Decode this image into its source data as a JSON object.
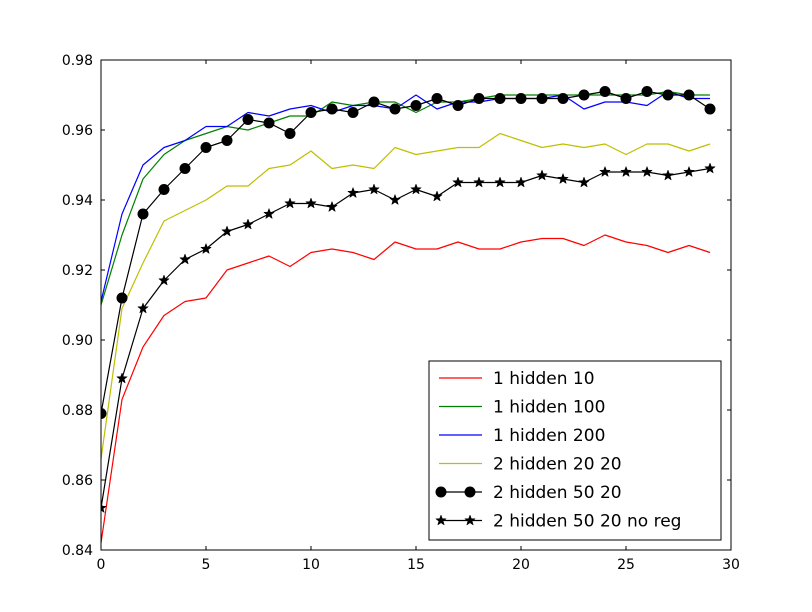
{
  "chart_data": {
    "type": "line",
    "title": "",
    "xlabel": "",
    "ylabel": "",
    "xlim": [
      0,
      30
    ],
    "ylim": [
      0.84,
      0.98
    ],
    "x_ticks": [
      "0",
      "5",
      "10",
      "15",
      "20",
      "25",
      "30"
    ],
    "y_ticks": [
      "0.84",
      "0.86",
      "0.88",
      "0.90",
      "0.92",
      "0.94",
      "0.96",
      "0.98"
    ],
    "grid": false,
    "legend_position": "lower-right",
    "x": [
      0,
      1,
      2,
      3,
      4,
      5,
      6,
      7,
      8,
      9,
      10,
      11,
      12,
      13,
      14,
      15,
      16,
      17,
      18,
      19,
      20,
      21,
      22,
      23,
      24,
      25,
      26,
      27,
      28,
      29
    ],
    "series": [
      {
        "name": "1 hidden 10",
        "color": "#ff0000",
        "marker": "none",
        "values": [
          0.842,
          0.883,
          0.898,
          0.907,
          0.911,
          0.912,
          0.92,
          0.922,
          0.924,
          0.921,
          0.925,
          0.926,
          0.925,
          0.923,
          0.928,
          0.926,
          0.926,
          0.928,
          0.926,
          0.926,
          0.928,
          0.929,
          0.929,
          0.927,
          0.93,
          0.928,
          0.927,
          0.925,
          0.927,
          0.925
        ]
      },
      {
        "name": "1 hidden 100",
        "color": "#008000",
        "marker": "none",
        "values": [
          0.91,
          0.93,
          0.946,
          0.953,
          0.957,
          0.959,
          0.961,
          0.96,
          0.962,
          0.964,
          0.964,
          0.968,
          0.967,
          0.968,
          0.968,
          0.965,
          0.968,
          0.968,
          0.969,
          0.97,
          0.97,
          0.97,
          0.97,
          0.97,
          0.97,
          0.97,
          0.97,
          0.971,
          0.97,
          0.97
        ]
      },
      {
        "name": "1 hidden 200",
        "color": "#0000ff",
        "marker": "none",
        "values": [
          0.911,
          0.936,
          0.95,
          0.955,
          0.957,
          0.961,
          0.961,
          0.965,
          0.964,
          0.966,
          0.967,
          0.965,
          0.967,
          0.967,
          0.966,
          0.97,
          0.966,
          0.968,
          0.968,
          0.969,
          0.969,
          0.969,
          0.97,
          0.966,
          0.968,
          0.968,
          0.967,
          0.971,
          0.969,
          0.969
        ]
      },
      {
        "name": "2 hidden 20 20",
        "color": "#bfbf00",
        "marker": "none",
        "values": [
          0.866,
          0.909,
          0.922,
          0.934,
          0.937,
          0.94,
          0.944,
          0.944,
          0.949,
          0.95,
          0.954,
          0.949,
          0.95,
          0.949,
          0.955,
          0.953,
          0.954,
          0.955,
          0.955,
          0.959,
          0.957,
          0.955,
          0.956,
          0.955,
          0.956,
          0.953,
          0.956,
          0.956,
          0.954,
          0.956
        ]
      },
      {
        "name": "2 hidden 50 20",
        "color": "#000000",
        "marker": "circle",
        "values": [
          0.879,
          0.912,
          0.936,
          0.943,
          0.949,
          0.955,
          0.957,
          0.963,
          0.962,
          0.959,
          0.965,
          0.966,
          0.965,
          0.968,
          0.966,
          0.967,
          0.969,
          0.967,
          0.969,
          0.969,
          0.969,
          0.969,
          0.969,
          0.97,
          0.971,
          0.969,
          0.971,
          0.97,
          0.97,
          0.966
        ]
      },
      {
        "name": "2 hidden 50 20 no reg",
        "color": "#000000",
        "marker": "star",
        "values": [
          0.852,
          0.889,
          0.909,
          0.917,
          0.923,
          0.926,
          0.931,
          0.933,
          0.936,
          0.939,
          0.939,
          0.938,
          0.942,
          0.943,
          0.94,
          0.943,
          0.941,
          0.945,
          0.945,
          0.945,
          0.945,
          0.947,
          0.946,
          0.945,
          0.948,
          0.948,
          0.948,
          0.947,
          0.948,
          0.949
        ]
      }
    ]
  }
}
